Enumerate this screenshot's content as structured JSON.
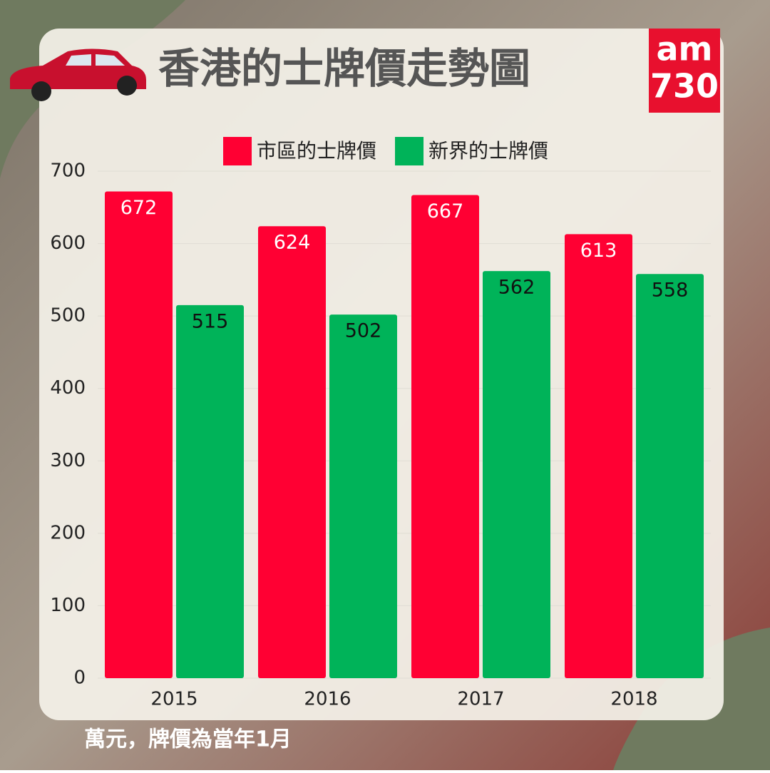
{
  "chart_data": {
    "type": "bar",
    "title": "香港的士牌價走勢圖",
    "note": "萬元，牌價為當年1月",
    "categories": [
      "2015",
      "2016",
      "2017",
      "2018"
    ],
    "series": [
      {
        "name": "市區的士牌價",
        "color": "#ff0033",
        "values": [
          672,
          624,
          667,
          613
        ]
      },
      {
        "name": "新界的士牌價",
        "color": "#00b359",
        "values": [
          515,
          502,
          562,
          558
        ]
      }
    ],
    "ylim": [
      0,
      700
    ],
    "yticks": [
      0,
      100,
      200,
      300,
      400,
      500,
      600,
      700
    ],
    "grid": true
  },
  "logo": {
    "top": "am",
    "bottom": "730"
  }
}
